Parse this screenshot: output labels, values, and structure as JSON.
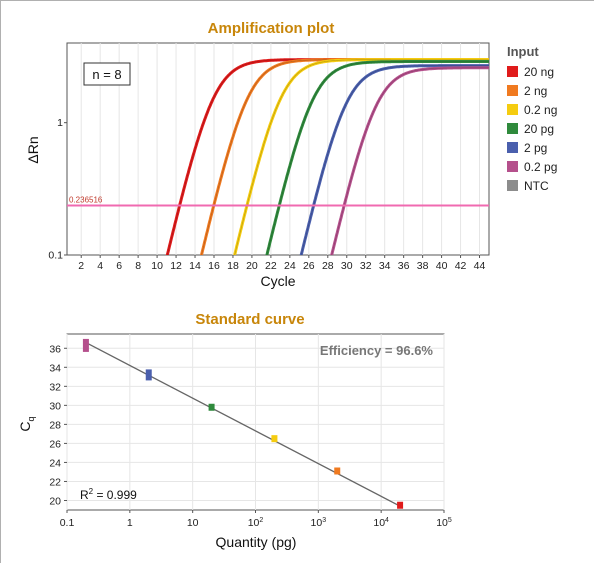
{
  "chart_data": [
    {
      "type": "line",
      "title": "Amplification plot",
      "xlabel": "Cycle",
      "ylabel": "ΔRn",
      "x_ticks": [
        2,
        4,
        6,
        8,
        10,
        12,
        14,
        16,
        18,
        20,
        22,
        24,
        26,
        28,
        30,
        32,
        34,
        36,
        38,
        40,
        42,
        44
      ],
      "xlim": [
        0.5,
        45
      ],
      "y_scale": "log",
      "y_ticks": [
        "0.1",
        "1"
      ],
      "ylim": [
        0.1,
        4
      ],
      "annotation": "n = 8",
      "threshold": {
        "value": 0.236516,
        "label": "0.236516",
        "color": "#f06ab0"
      },
      "legend": {
        "title": "Input",
        "position": "right"
      },
      "series": [
        {
          "name": "20 ng",
          "color": "#e01b1b",
          "cq": 19.4,
          "plateau": 3.0
        },
        {
          "name": "2 ng",
          "color": "#f07a20",
          "cq": 23.0,
          "plateau": 3.0
        },
        {
          "name": "0.2 ng",
          "color": "#f5cc10",
          "cq": 26.5,
          "plateau": 3.0
        },
        {
          "name": "20 pg",
          "color": "#2f8a3c",
          "cq": 29.8,
          "plateau": 2.9
        },
        {
          "name": "2 pg",
          "color": "#4a5fad",
          "cq": 33.2,
          "plateau": 2.7
        },
        {
          "name": "0.2 pg",
          "color": "#b5508c",
          "cq": 36.3,
          "plateau": 2.6
        },
        {
          "name": "NTC",
          "color": "#8c8c8c",
          "cq": null
        }
      ],
      "grid": true
    },
    {
      "type": "scatter",
      "title": "Standard curve",
      "xlabel": "Quantity (pg)",
      "ylabel": "Cq",
      "x_scale": "log",
      "x_tick_labels": [
        {
          "base": "0.1",
          "exp": ""
        },
        {
          "base": "1",
          "exp": ""
        },
        {
          "base": "10",
          "exp": ""
        },
        {
          "base": "10",
          "exp": "2"
        },
        {
          "base": "10",
          "exp": "3"
        },
        {
          "base": "10",
          "exp": "4"
        },
        {
          "base": "10",
          "exp": "5"
        }
      ],
      "xlim": [
        0.1,
        100000
      ],
      "ylim": [
        19,
        37.5
      ],
      "y_ticks": [
        20,
        22,
        24,
        26,
        28,
        30,
        32,
        34,
        36
      ],
      "annotations": {
        "efficiency": "Efficiency = 96.6%",
        "r2_prefix": "R",
        "r2_exp": "2",
        "r2_value": " = 0.999"
      },
      "fit": {
        "x": [
          0.2,
          20000
        ],
        "y": [
          36.6,
          19.4
        ]
      },
      "points": [
        {
          "x": 0.2,
          "y": 36.3,
          "color": "#b5508c"
        },
        {
          "x": 2,
          "y": 33.2,
          "color": "#4a5fad"
        },
        {
          "x": 20,
          "y": 29.8,
          "color": "#2f8a3c"
        },
        {
          "x": 200,
          "y": 26.5,
          "color": "#f5cc10"
        },
        {
          "x": 2000,
          "y": 23.1,
          "color": "#f07a20"
        },
        {
          "x": 20000,
          "y": 19.5,
          "color": "#e01b1b"
        }
      ],
      "grid": true
    }
  ]
}
